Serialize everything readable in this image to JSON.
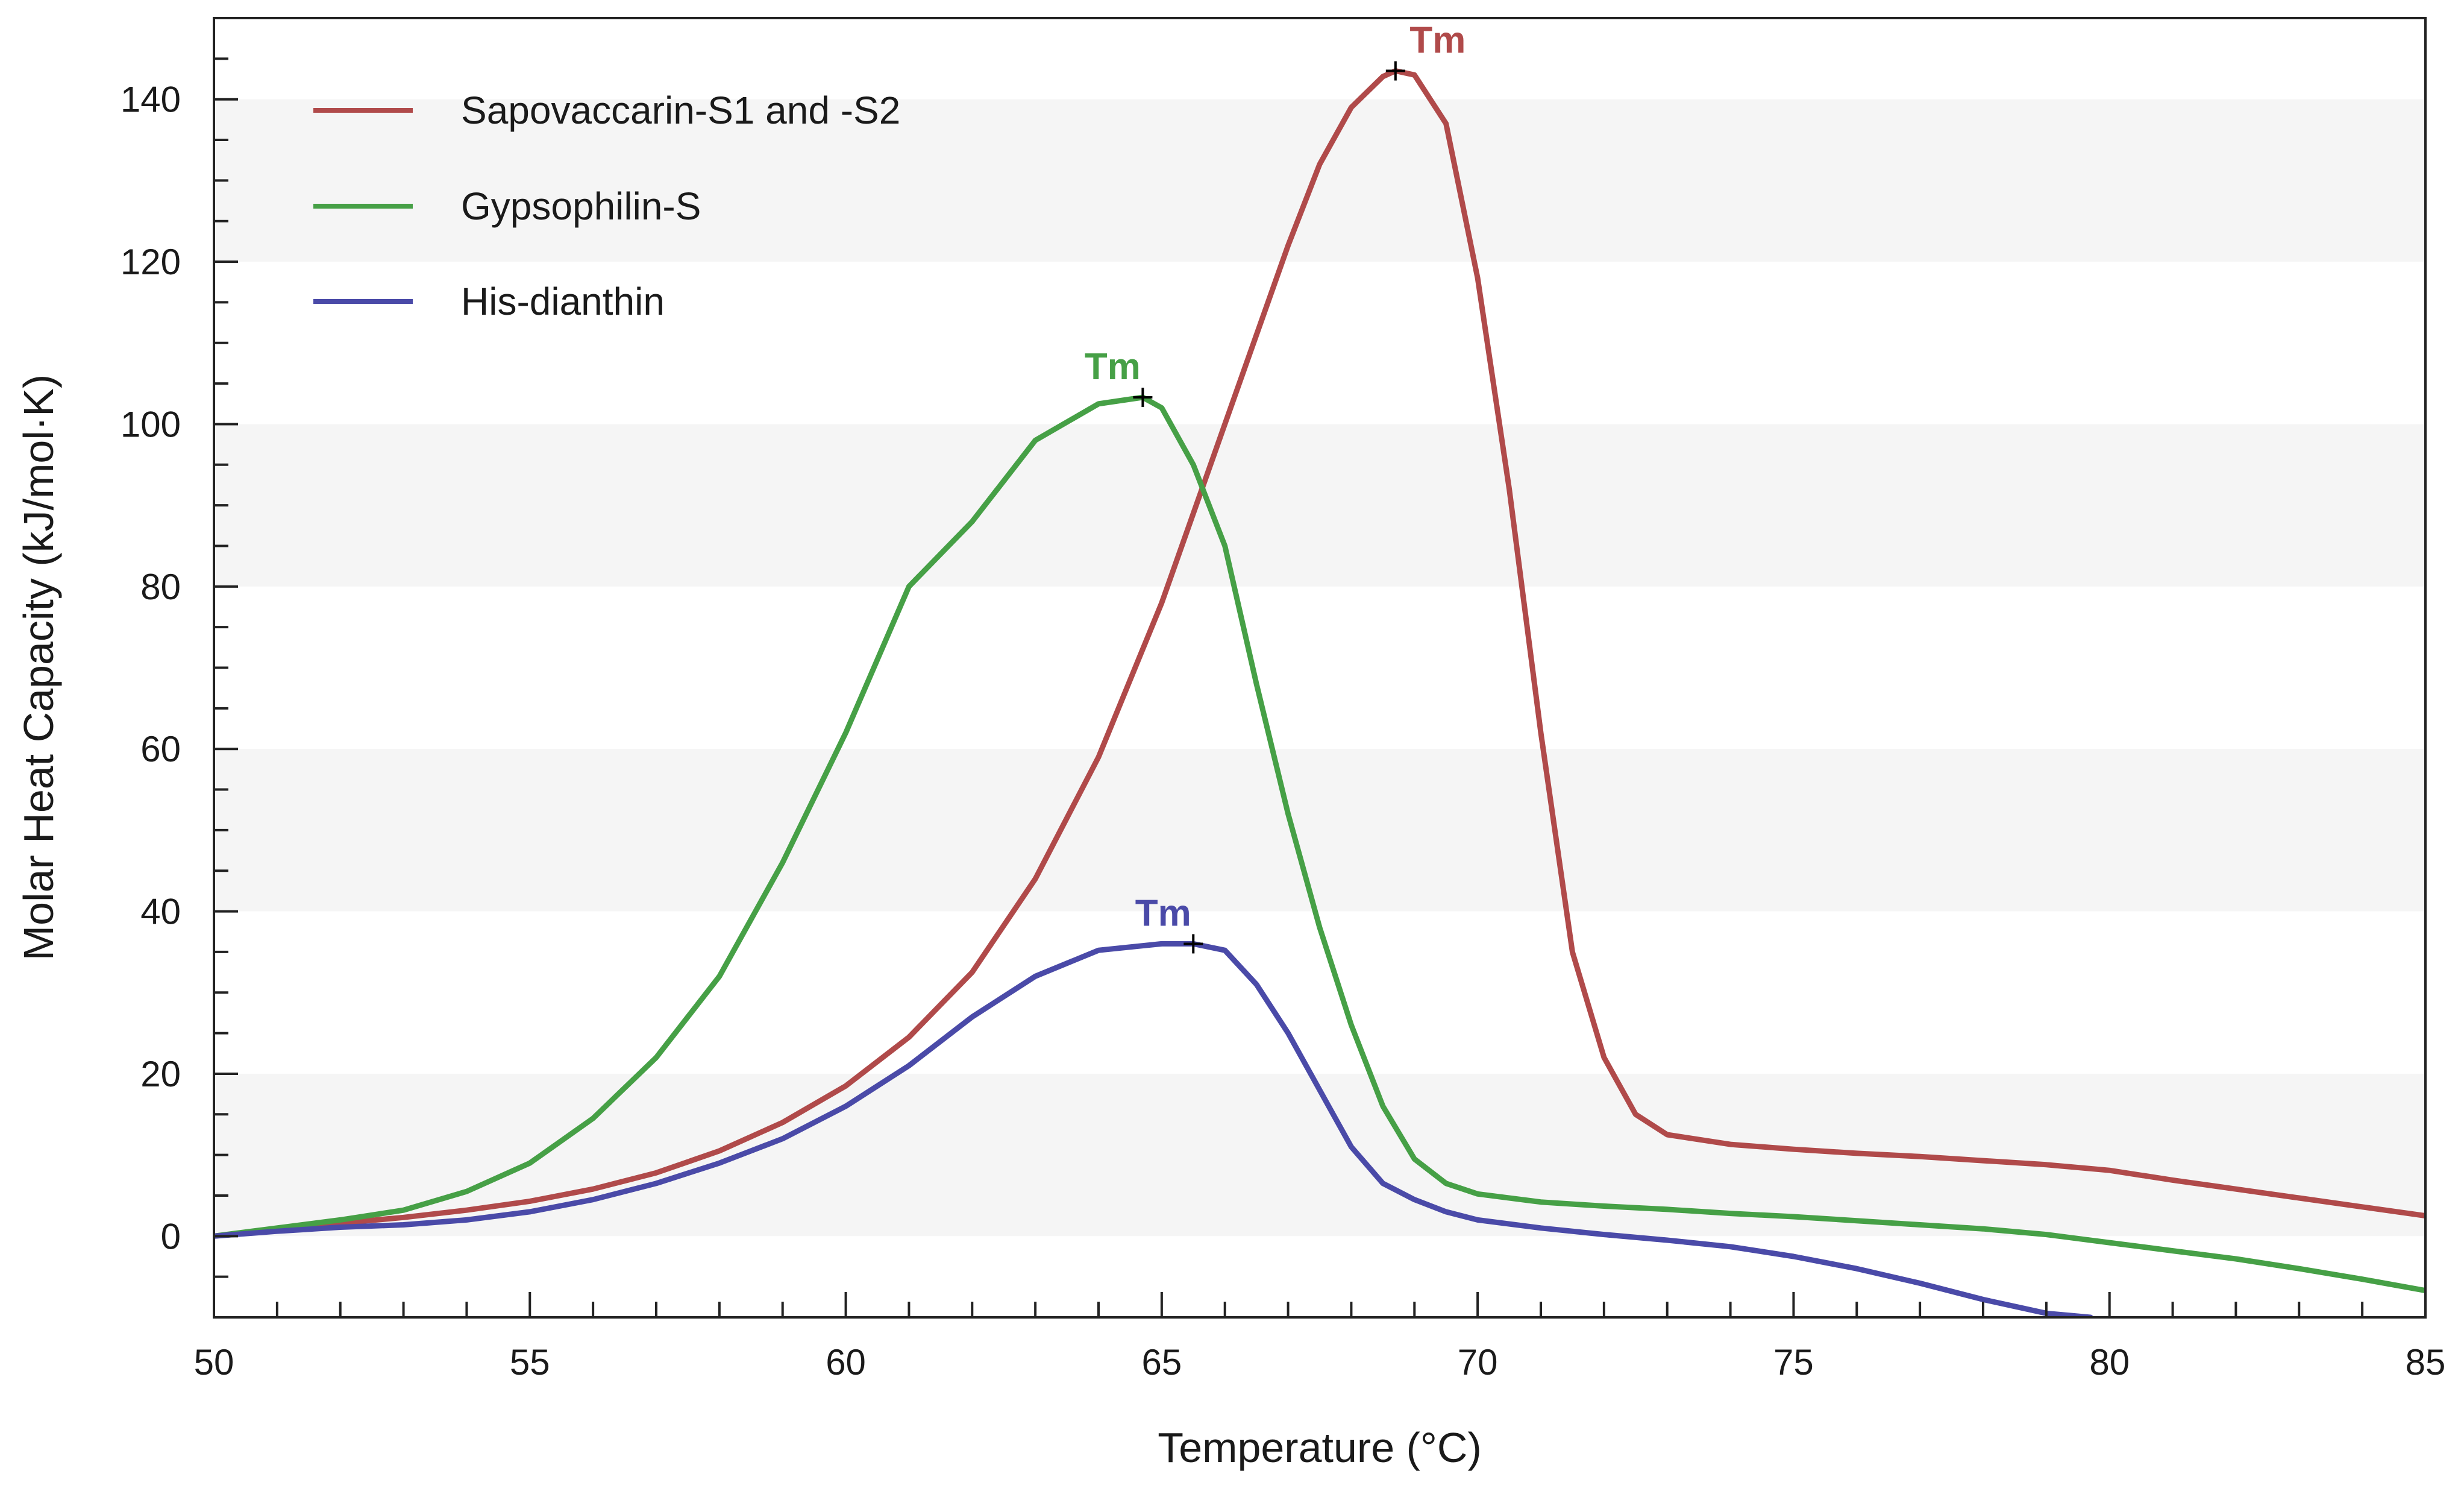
{
  "chart_data": {
    "type": "line",
    "title": "",
    "xlabel": "Temperature (°C)",
    "ylabel": "Molar Heat Capacity (kJ/mol·K)",
    "xlim": [
      50,
      85
    ],
    "ylim": [
      -10,
      150
    ],
    "x_ticks": [
      50,
      55,
      60,
      65,
      70,
      75,
      80,
      85
    ],
    "y_ticks": [
      0,
      20,
      40,
      60,
      80,
      100,
      120,
      140
    ],
    "grid": "alternating horizontal bands",
    "legend_position": "top-left",
    "series": [
      {
        "name": "Sapovaccarin-S1 and -S2",
        "color": "#b04a4a",
        "tm": {
          "label": "Tm",
          "x": 68.7,
          "y": 143.5
        },
        "points": [
          [
            50,
            0
          ],
          [
            51,
            0.8
          ],
          [
            52,
            1.6
          ],
          [
            53,
            2.3
          ],
          [
            54,
            3.2
          ],
          [
            55,
            4.3
          ],
          [
            56,
            5.8
          ],
          [
            57,
            7.8
          ],
          [
            58,
            10.5
          ],
          [
            59,
            14
          ],
          [
            60,
            18.5
          ],
          [
            61,
            24.5
          ],
          [
            62,
            32.5
          ],
          [
            63,
            44
          ],
          [
            64,
            59
          ],
          [
            65,
            78
          ],
          [
            66,
            100
          ],
          [
            67,
            122
          ],
          [
            67.5,
            132
          ],
          [
            68,
            139
          ],
          [
            68.5,
            142.8
          ],
          [
            68.7,
            143.5
          ],
          [
            69,
            143
          ],
          [
            69.5,
            137
          ],
          [
            70,
            118
          ],
          [
            70.5,
            92
          ],
          [
            71,
            62
          ],
          [
            71.5,
            35
          ],
          [
            72,
            22
          ],
          [
            72.5,
            15
          ],
          [
            73,
            12.5
          ],
          [
            74,
            11.3
          ],
          [
            75,
            10.7
          ],
          [
            76,
            10.2
          ],
          [
            77,
            9.8
          ],
          [
            78,
            9.3
          ],
          [
            79,
            8.8
          ],
          [
            80,
            8.1
          ],
          [
            81,
            6.9
          ],
          [
            82,
            5.8
          ],
          [
            83,
            4.7
          ],
          [
            84,
            3.6
          ],
          [
            85,
            2.5
          ]
        ]
      },
      {
        "name": "Gypsophilin-S",
        "color": "#46a046",
        "tm": {
          "label": "Tm",
          "x": 64.7,
          "y": 103.3
        },
        "points": [
          [
            50,
            0
          ],
          [
            51,
            1
          ],
          [
            52,
            2
          ],
          [
            53,
            3.2
          ],
          [
            54,
            5.5
          ],
          [
            55,
            9
          ],
          [
            56,
            14.5
          ],
          [
            57,
            22
          ],
          [
            58,
            32
          ],
          [
            59,
            46
          ],
          [
            60,
            62
          ],
          [
            61,
            80
          ],
          [
            62,
            88
          ],
          [
            63,
            98
          ],
          [
            64,
            102.5
          ],
          [
            64.7,
            103.3
          ],
          [
            65,
            102
          ],
          [
            65.5,
            95
          ],
          [
            66,
            85
          ],
          [
            66.5,
            68
          ],
          [
            67,
            52
          ],
          [
            67.5,
            38
          ],
          [
            68,
            26
          ],
          [
            68.5,
            16
          ],
          [
            69,
            9.5
          ],
          [
            69.5,
            6.5
          ],
          [
            70,
            5.2
          ],
          [
            71,
            4.2
          ],
          [
            72,
            3.7
          ],
          [
            73,
            3.3
          ],
          [
            74,
            2.8
          ],
          [
            75,
            2.4
          ],
          [
            76,
            1.9
          ],
          [
            77,
            1.4
          ],
          [
            78,
            0.9
          ],
          [
            79,
            0.2
          ],
          [
            80,
            -0.8
          ],
          [
            81,
            -1.8
          ],
          [
            82,
            -2.8
          ],
          [
            83,
            -4
          ],
          [
            84,
            -5.3
          ],
          [
            85,
            -6.7
          ]
        ]
      },
      {
        "name": "His-dianthin",
        "color": "#4a4aa8",
        "tm": {
          "label": "Tm",
          "x": 65.5,
          "y": 36.0
        },
        "points": [
          [
            50,
            0
          ],
          [
            51,
            0.6
          ],
          [
            52,
            1.1
          ],
          [
            53,
            1.4
          ],
          [
            54,
            2
          ],
          [
            55,
            3
          ],
          [
            56,
            4.5
          ],
          [
            57,
            6.5
          ],
          [
            58,
            9
          ],
          [
            59,
            12
          ],
          [
            60,
            16
          ],
          [
            61,
            21
          ],
          [
            62,
            27
          ],
          [
            63,
            32
          ],
          [
            64,
            35.2
          ],
          [
            65,
            36
          ],
          [
            65.5,
            36
          ],
          [
            66,
            35.2
          ],
          [
            66.5,
            31
          ],
          [
            67,
            25
          ],
          [
            67.5,
            18
          ],
          [
            68,
            11
          ],
          [
            68.5,
            6.5
          ],
          [
            69,
            4.5
          ],
          [
            69.5,
            3
          ],
          [
            70,
            2
          ],
          [
            71,
            1
          ],
          [
            72,
            0.2
          ],
          [
            73,
            -0.5
          ],
          [
            74,
            -1.3
          ],
          [
            75,
            -2.5
          ],
          [
            76,
            -4
          ],
          [
            77,
            -5.8
          ],
          [
            78,
            -7.8
          ],
          [
            79,
            -9.5
          ],
          [
            79.7,
            -10
          ]
        ]
      }
    ]
  }
}
